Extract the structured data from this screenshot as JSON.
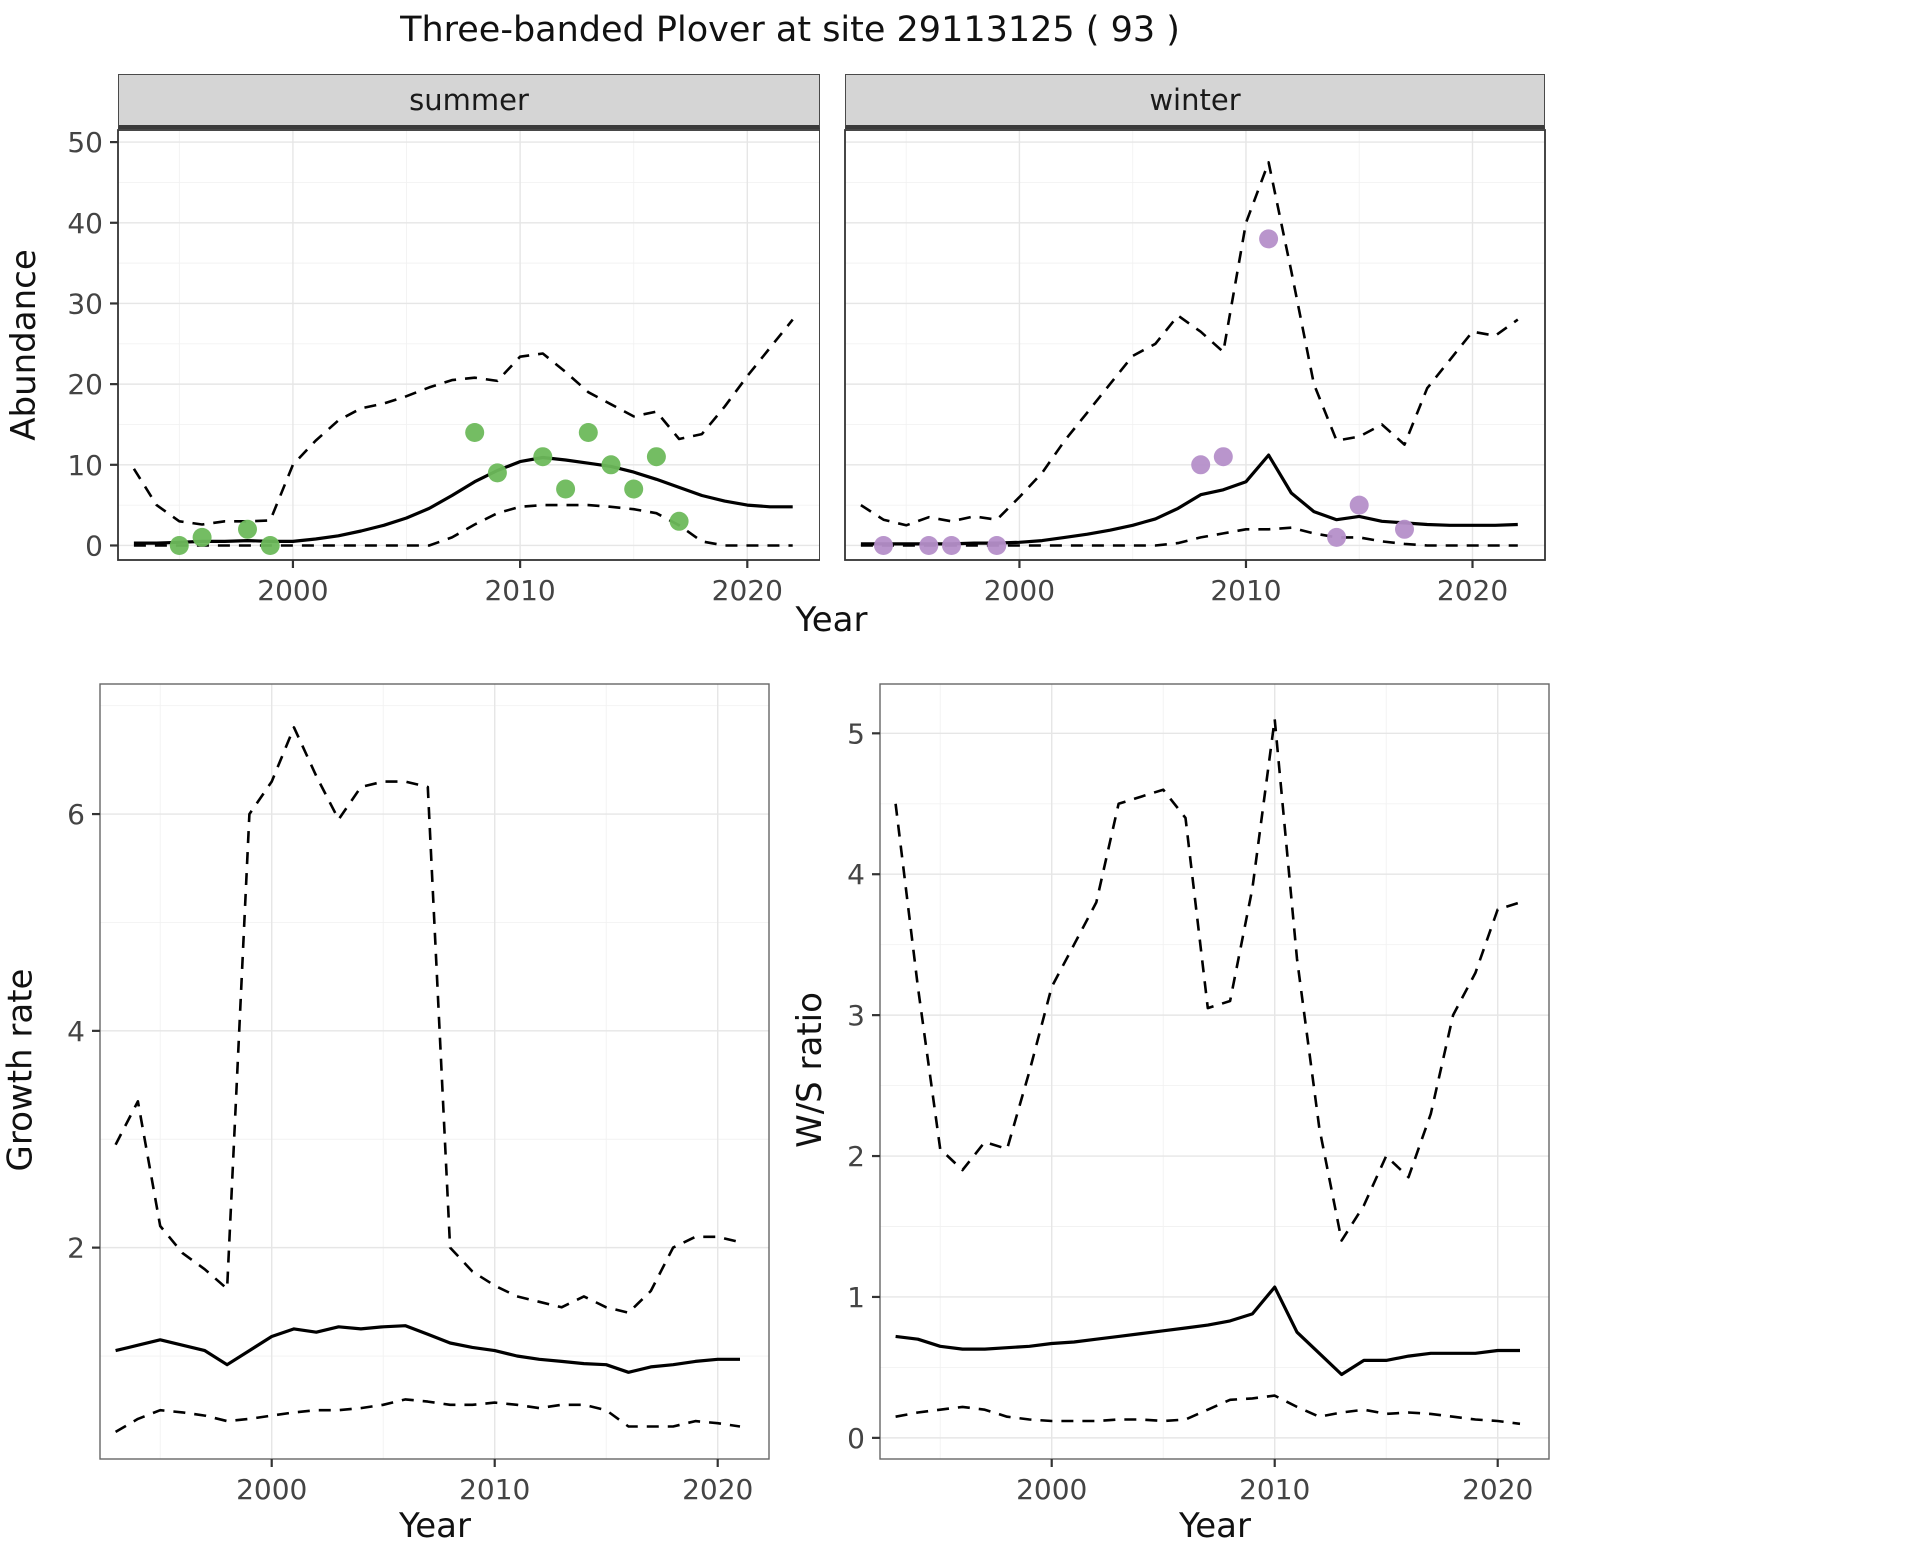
{
  "title": "Three-banded Plover at site 29113125 ( 93 )",
  "colors": {
    "summer_points": "#6db95b",
    "winter_points": "#b58fc9",
    "line": "#000000",
    "strip_bg": "#d5d5d5",
    "grid_major": "#e6e6e6",
    "grid_minor": "#f2f2f2",
    "tick_text": "#444444",
    "panel_border_top": "#333333",
    "panel_border_bottom": "#666666"
  },
  "chart_data": [
    {
      "id": "abundance-summer",
      "type": "line",
      "strip": "summer",
      "xlabel": "Year",
      "ylabel": "Abundance",
      "xlim": [
        1992.3,
        2023.2
      ],
      "ylim": [
        -1.8,
        51.5
      ],
      "xticks": [
        2000,
        2010,
        2020
      ],
      "yticks": [
        0,
        10,
        20,
        30,
        40,
        50
      ],
      "x": [
        1993,
        1994,
        1995,
        1996,
        1997,
        1998,
        1999,
        2000,
        2001,
        2002,
        2003,
        2004,
        2005,
        2006,
        2007,
        2008,
        2009,
        2010,
        2011,
        2012,
        2013,
        2014,
        2015,
        2016,
        2017,
        2018,
        2019,
        2020,
        2021,
        2022
      ],
      "series": [
        {
          "name": "median",
          "style": "solid",
          "values": [
            0.3,
            0.3,
            0.4,
            0.5,
            0.5,
            0.6,
            0.5,
            0.5,
            0.8,
            1.2,
            1.8,
            2.5,
            3.4,
            4.6,
            6.2,
            7.9,
            9.3,
            10.4,
            10.9,
            10.6,
            10.2,
            9.8,
            9.1,
            8.2,
            7.2,
            6.2,
            5.5,
            5.0,
            4.8,
            4.8
          ]
        },
        {
          "name": "upper_ci",
          "style": "dashed",
          "values": [
            9.5,
            5.0,
            3.0,
            2.6,
            3.0,
            3.0,
            3.1,
            10.0,
            13.0,
            15.5,
            17.0,
            17.6,
            18.5,
            19.6,
            20.5,
            20.8,
            20.4,
            23.4,
            23.8,
            21.5,
            19.0,
            17.5,
            16.0,
            16.6,
            13.2,
            13.8,
            17.2,
            21.0,
            24.5,
            28.0
          ]
        },
        {
          "name": "lower_ci",
          "style": "dashed",
          "values": [
            0,
            0,
            0,
            0,
            0,
            0,
            0,
            0,
            0,
            0,
            0,
            0,
            0,
            0,
            1.0,
            2.6,
            4.0,
            4.8,
            5.0,
            5.0,
            5.0,
            4.8,
            4.5,
            4.0,
            2.5,
            0.5,
            0,
            0,
            0,
            0
          ]
        }
      ],
      "points": {
        "name": "observed-counts-summer",
        "color_key": "summer_points",
        "x": [
          1995,
          1996,
          1998,
          1999,
          2008,
          2009,
          2011,
          2012,
          2013,
          2014,
          2015,
          2016,
          2017
        ],
        "y": [
          0,
          1,
          2,
          0,
          14,
          9,
          11,
          7,
          14,
          10,
          7,
          11,
          3
        ]
      }
    },
    {
      "id": "abundance-winter",
      "type": "line",
      "strip": "winter",
      "xlabel": "Year",
      "ylabel": "Abundance",
      "xlim": [
        1992.3,
        2023.2
      ],
      "ylim": [
        -1.8,
        51.5
      ],
      "xticks": [
        2000,
        2010,
        2020
      ],
      "yticks": [
        0,
        10,
        20,
        30,
        40,
        50
      ],
      "x": [
        1993,
        1994,
        1995,
        1996,
        1997,
        1998,
        1999,
        2000,
        2001,
        2002,
        2003,
        2004,
        2005,
        2006,
        2007,
        2008,
        2009,
        2010,
        2011,
        2012,
        2013,
        2014,
        2015,
        2016,
        2017,
        2018,
        2019,
        2020,
        2021,
        2022
      ],
      "series": [
        {
          "name": "median",
          "style": "solid",
          "values": [
            0.2,
            0.2,
            0.2,
            0.2,
            0.2,
            0.3,
            0.3,
            0.4,
            0.6,
            1.0,
            1.4,
            1.9,
            2.5,
            3.3,
            4.6,
            6.3,
            6.9,
            7.9,
            11.2,
            6.5,
            4.2,
            3.2,
            3.6,
            3.0,
            2.8,
            2.6,
            2.5,
            2.5,
            2.5,
            2.6
          ]
        },
        {
          "name": "upper_ci",
          "style": "dashed",
          "values": [
            5.0,
            3.2,
            2.5,
            3.5,
            3.0,
            3.6,
            3.2,
            6.0,
            9.0,
            13.0,
            16.5,
            20.0,
            23.5,
            25.0,
            28.5,
            26.5,
            24.0,
            40.0,
            47.5,
            34.0,
            20.0,
            13.0,
            13.5,
            15.0,
            12.5,
            19.5,
            23.0,
            26.5,
            26.0,
            28.0
          ]
        },
        {
          "name": "lower_ci",
          "style": "dashed",
          "values": [
            0,
            0,
            0,
            0,
            0,
            0,
            0,
            0,
            0,
            0,
            0,
            0,
            0,
            0,
            0.3,
            1.0,
            1.5,
            2.0,
            2.0,
            2.2,
            1.5,
            1.0,
            1.0,
            0.5,
            0.2,
            0,
            0,
            0,
            0,
            0
          ]
        }
      ],
      "points": {
        "name": "observed-counts-winter",
        "color_key": "winter_points",
        "x": [
          1994,
          1996,
          1997,
          1999,
          2008,
          2009,
          2011,
          2014,
          2015,
          2017
        ],
        "y": [
          0,
          0,
          0,
          0,
          10,
          11,
          38,
          1,
          5,
          2
        ]
      }
    },
    {
      "id": "growth-rate",
      "type": "line",
      "strip": "",
      "xlabel": "Year",
      "ylabel": "Growth rate",
      "xlim": [
        1992.3,
        2022.3
      ],
      "ylim": [
        0.05,
        7.2
      ],
      "xticks": [
        2000,
        2010,
        2020
      ],
      "yticks": [
        2,
        4,
        6
      ],
      "x": [
        1993,
        1994,
        1995,
        1996,
        1997,
        1998,
        1999,
        2000,
        2001,
        2002,
        2003,
        2004,
        2005,
        2006,
        2007,
        2008,
        2009,
        2010,
        2011,
        2012,
        2013,
        2014,
        2015,
        2016,
        2017,
        2018,
        2019,
        2020,
        2021
      ],
      "series": [
        {
          "name": "median",
          "style": "solid",
          "values": [
            1.05,
            1.1,
            1.15,
            1.1,
            1.05,
            0.92,
            1.05,
            1.18,
            1.25,
            1.22,
            1.27,
            1.25,
            1.27,
            1.28,
            1.2,
            1.12,
            1.08,
            1.05,
            1.0,
            0.97,
            0.95,
            0.93,
            0.92,
            0.85,
            0.9,
            0.92,
            0.95,
            0.97,
            0.97
          ]
        },
        {
          "name": "upper_ci",
          "style": "dashed",
          "values": [
            2.95,
            3.35,
            2.2,
            1.95,
            1.8,
            1.62,
            6.0,
            6.3,
            6.8,
            6.35,
            5.95,
            6.25,
            6.3,
            6.3,
            6.25,
            2.0,
            1.78,
            1.65,
            1.55,
            1.5,
            1.45,
            1.55,
            1.45,
            1.4,
            1.6,
            2.0,
            2.1,
            2.1,
            2.05
          ]
        },
        {
          "name": "lower_ci",
          "style": "dashed",
          "values": [
            0.3,
            0.42,
            0.5,
            0.48,
            0.45,
            0.4,
            0.42,
            0.45,
            0.48,
            0.5,
            0.5,
            0.52,
            0.55,
            0.6,
            0.58,
            0.55,
            0.55,
            0.57,
            0.55,
            0.52,
            0.55,
            0.55,
            0.5,
            0.35,
            0.35,
            0.35,
            0.4,
            0.38,
            0.35
          ]
        }
      ]
    },
    {
      "id": "ws-ratio",
      "type": "line",
      "strip": "",
      "xlabel": "Year",
      "ylabel": "W/S ratio",
      "xlim": [
        1992.3,
        2022.3
      ],
      "ylim": [
        -0.15,
        5.35
      ],
      "xticks": [
        2000,
        2010,
        2020
      ],
      "yticks": [
        0,
        1,
        2,
        3,
        4,
        5
      ],
      "x": [
        1993,
        1994,
        1995,
        1996,
        1997,
        1998,
        1999,
        2000,
        2001,
        2002,
        2003,
        2004,
        2005,
        2006,
        2007,
        2008,
        2009,
        2010,
        2011,
        2012,
        2013,
        2014,
        2015,
        2016,
        2017,
        2018,
        2019,
        2020,
        2021
      ],
      "series": [
        {
          "name": "median",
          "style": "solid",
          "values": [
            0.72,
            0.7,
            0.65,
            0.63,
            0.63,
            0.64,
            0.65,
            0.67,
            0.68,
            0.7,
            0.72,
            0.74,
            0.76,
            0.78,
            0.8,
            0.83,
            0.88,
            1.07,
            0.75,
            0.6,
            0.45,
            0.55,
            0.55,
            0.58,
            0.6,
            0.6,
            0.6,
            0.62,
            0.62
          ]
        },
        {
          "name": "upper_ci",
          "style": "dashed",
          "values": [
            4.5,
            3.2,
            2.05,
            1.9,
            2.1,
            2.05,
            2.6,
            3.2,
            3.5,
            3.8,
            4.5,
            4.55,
            4.6,
            4.4,
            3.05,
            3.1,
            3.9,
            5.1,
            3.4,
            2.2,
            1.4,
            1.65,
            2.0,
            1.85,
            2.3,
            3.0,
            3.3,
            3.75,
            3.8
          ]
        },
        {
          "name": "lower_ci",
          "style": "dashed",
          "values": [
            0.15,
            0.18,
            0.2,
            0.22,
            0.2,
            0.15,
            0.13,
            0.12,
            0.12,
            0.12,
            0.13,
            0.13,
            0.12,
            0.13,
            0.2,
            0.27,
            0.28,
            0.3,
            0.22,
            0.15,
            0.18,
            0.2,
            0.17,
            0.18,
            0.17,
            0.15,
            0.13,
            0.12,
            0.1
          ]
        }
      ]
    }
  ]
}
